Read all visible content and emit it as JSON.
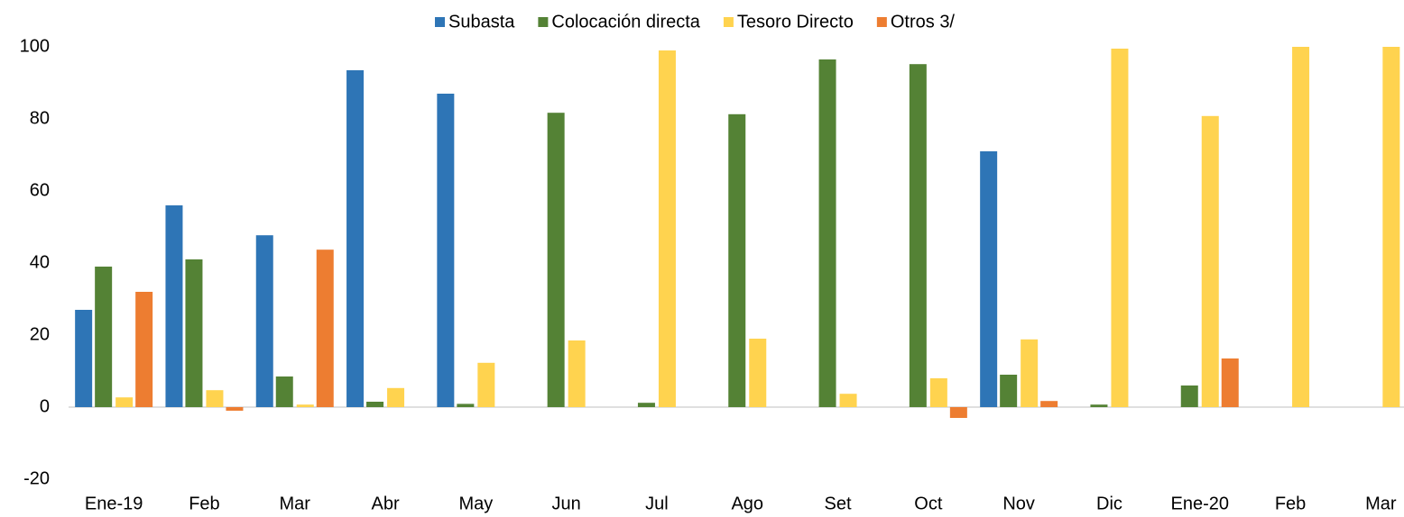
{
  "chart_data": {
    "type": "bar",
    "categories": [
      "Ene-19",
      "Feb",
      "Mar",
      "Abr",
      "May",
      "Jun",
      "Jul",
      "Ago",
      "Set",
      "Oct",
      "Nov",
      "Dic",
      "Ene-20",
      "Feb",
      "Mar"
    ],
    "series": [
      {
        "name": "Subasta",
        "color": "#2e75b6",
        "values": [
          27,
          56,
          47.7,
          93.5,
          87,
          0,
          0,
          0,
          0,
          0,
          71,
          0,
          0,
          0,
          0
        ]
      },
      {
        "name": "Colocación directa",
        "color": "#548235",
        "values": [
          39,
          41,
          8.5,
          1.5,
          0.9,
          81.7,
          1.2,
          81.3,
          96.5,
          95.2,
          9,
          0.7,
          6,
          0,
          0
        ]
      },
      {
        "name": "Tesoro Directo",
        "color": "#ffd34f",
        "values": [
          2.7,
          4.7,
          0.7,
          5.3,
          12.3,
          18.5,
          99,
          19,
          3.7,
          8,
          18.8,
          99.5,
          80.8,
          100,
          100
        ]
      },
      {
        "name": "Otros 3/",
        "color": "#ed7d31",
        "values": [
          32,
          -1,
          43.7,
          0,
          0,
          0,
          0,
          0,
          0,
          -3,
          1.7,
          0,
          13.5,
          0,
          0
        ]
      }
    ],
    "ylim": [
      -20,
      100
    ],
    "yticks": [
      -20,
      0,
      20,
      40,
      60,
      80,
      100
    ],
    "grid": false,
    "legend": "top"
  }
}
